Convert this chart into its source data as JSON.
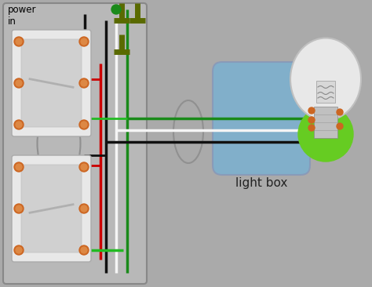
{
  "bg_color": "#aaaaaa",
  "power_label": "power\nin",
  "light_box_label": "light box",
  "wire_black": "#111111",
  "wire_white": "#f5f5f5",
  "wire_red": "#cc0000",
  "wire_green": "#1a8a1a",
  "wire_green2": "#22bb22",
  "connector_color": "#5a6a00",
  "screw_color": "#cc6622",
  "switch_bg": "#e8e8e8",
  "switch_border": "#aaaaaa",
  "switch_paddle": "#d0d0d0",
  "wall_box_bg": "#b8b8b8",
  "light_box_fill": "#7ab0d0",
  "light_box_edge": "#8898b8",
  "bulb_glass": "#e8e8e8",
  "bulb_base_green": "#66cc22",
  "bulb_filament": "#aaaaaa"
}
